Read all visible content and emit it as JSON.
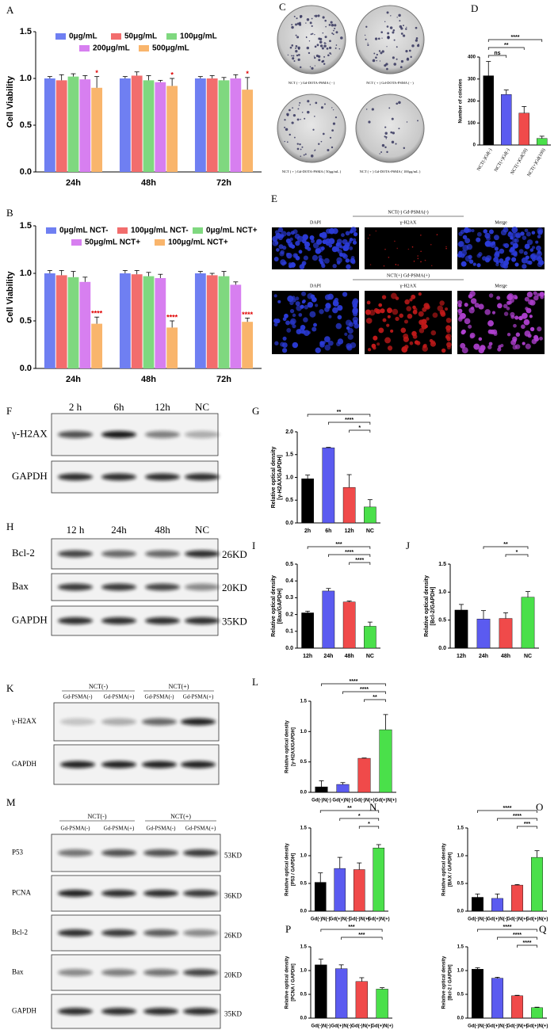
{
  "panel_labels": [
    "A",
    "B",
    "C",
    "D",
    "E",
    "F",
    "G",
    "H",
    "I",
    "J",
    "K",
    "L",
    "M",
    "N",
    "O",
    "P",
    "Q"
  ],
  "colony": {
    "captions": [
      "NCT ( - )  Gd-DOTA-PSMA ( - )",
      "NCT ( + )  Gd-DOTA-PSMA ( - )",
      "NCT ( + )  Gd-DOTA-PSMA ( 50μg/mL )",
      "NCT ( + )  Gd-DOTA-PSMA ( 100μg/mL )"
    ]
  },
  "immuno": {
    "groups": [
      "NCT(-) Gd-PSMA(-)",
      "NCT(+) Gd-PSMA(+)"
    ],
    "channels": [
      "DAPI",
      "γ-H2AX",
      "Merge"
    ]
  },
  "blots": [
    {
      "lanes": [
        "2 h",
        "6h",
        "12h",
        "NC"
      ],
      "rows": [
        {
          "label": "γ-H2AX"
        },
        {
          "label": "GAPDH"
        }
      ]
    },
    {
      "lanes": [
        "12 h",
        "24h",
        "48h",
        "NC"
      ],
      "rows": [
        {
          "label": "Bcl-2",
          "kd": "26KD"
        },
        {
          "label": "Bax",
          "kd": "20KD"
        },
        {
          "label": "GAPDH",
          "kd": "35KD"
        }
      ]
    },
    {
      "groups": [
        "NCT(-)",
        "NCT(+)"
      ],
      "lanes": [
        "Gd-PSMA(-)",
        "Gd-PSMA(+)",
        "Gd-PSMA(-)",
        "Gd-PSMA(+)"
      ],
      "rows": [
        {
          "label": "γ-H2AX"
        },
        {
          "label": "GAPDH"
        }
      ]
    },
    {
      "groups": [
        "NCT(-)",
        "NCT(+)"
      ],
      "lanes": [
        "Gd-PSMA(-)",
        "Gd-PSMA(+)",
        "Gd-PSMA(-)",
        "Gd-PSMA(+)"
      ],
      "rows": [
        {
          "label": "P53",
          "kd": "53KD"
        },
        {
          "label": "PCNA",
          "kd": "36KD"
        },
        {
          "label": "Bcl-2",
          "kd": "26KD"
        },
        {
          "label": "Bax",
          "kd": "20KD"
        },
        {
          "label": "GAPDH",
          "kd": "35KD"
        }
      ]
    }
  ],
  "chart_data": [
    {
      "type": "bar",
      "ylabel": "Cell Viability",
      "categories": [
        "24h",
        "48h",
        "72h"
      ],
      "ylim": [
        0,
        1.5
      ],
      "yticks": [
        {
          "value": 0,
          "label": "0.0"
        },
        0.5,
        {
          "value": 1,
          "label": "1.0"
        },
        1.5
      ],
      "series": [
        {
          "name": "0μg/mL",
          "color": "#6f7ff2",
          "values": [
            1.0,
            1.0,
            1.0
          ],
          "errors": [
            0.02,
            0.02,
            0.02
          ]
        },
        {
          "name": "50μg/mL",
          "color": "#f26d6d",
          "values": [
            0.98,
            1.03,
            1.0
          ],
          "errors": [
            0.06,
            0.04,
            0.03
          ]
        },
        {
          "name": "100μg/mL",
          "color": "#7fd87f",
          "values": [
            1.02,
            0.98,
            0.98
          ],
          "errors": [
            0.03,
            0.05,
            0.03
          ]
        },
        {
          "name": "200μg/mL",
          "color": "#d77ff0",
          "values": [
            0.99,
            0.96,
            1.0
          ],
          "errors": [
            0.04,
            0.02,
            0.04
          ]
        },
        {
          "name": "500μg/mL",
          "color": "#f9b56c",
          "values": [
            0.9,
            0.92,
            0.88
          ],
          "errors": [
            0.12,
            0.08,
            0.13
          ],
          "annotations": [
            "*",
            "*",
            "*"
          ]
        }
      ]
    },
    {
      "type": "bar",
      "ylabel": "Cell Viability",
      "categories": [
        "24h",
        "48h",
        "72h"
      ],
      "ylim": [
        0,
        1.5
      ],
      "yticks": [
        {
          "value": 0,
          "label": "0.0"
        },
        0.5,
        {
          "value": 1,
          "label": "1.0"
        },
        1.5
      ],
      "series": [
        {
          "name": "0μg/mL NCT-",
          "color": "#6f7ff2",
          "values": [
            1.0,
            1.0,
            1.0
          ],
          "errors": [
            0.03,
            0.03,
            0.02
          ]
        },
        {
          "name": "100μg/mL NCT-",
          "color": "#f26d6d",
          "values": [
            0.98,
            0.99,
            0.98
          ],
          "errors": [
            0.05,
            0.04,
            0.02
          ]
        },
        {
          "name": "0μg/mL NCT+",
          "color": "#7fd87f",
          "values": [
            0.96,
            0.97,
            0.97
          ],
          "errors": [
            0.06,
            0.04,
            0.05
          ]
        },
        {
          "name": "50μg/mL NCT+",
          "color": "#d77ff0",
          "values": [
            0.91,
            0.95,
            0.88
          ],
          "errors": [
            0.05,
            0.04,
            0.03
          ]
        },
        {
          "name": "100μg/mL NCT+",
          "color": "#f9b56c",
          "values": [
            0.47,
            0.43,
            0.49
          ],
          "errors": [
            0.07,
            0.07,
            0.04
          ],
          "annotations": [
            "****",
            "****",
            "****"
          ]
        }
      ]
    },
    {
      "type": "bar",
      "ylabel": "Number of colonies",
      "categories": [
        "NCT(-)Gd(-)",
        "NCT(+)Gd(-)",
        "NCT(+)Gd(50)",
        "NCT(+)Gd(100)"
      ],
      "values": [
        315,
        230,
        145,
        30
      ],
      "errors": [
        65,
        20,
        30,
        10
      ],
      "colors": [
        "#000000",
        "#5b5bf0",
        "#f04a4a",
        "#4ae04a"
      ],
      "ylim": [
        0,
        400
      ],
      "yticks": [
        0,
        100,
        200,
        300,
        400
      ],
      "significance": [
        "****",
        "**",
        "ns"
      ]
    },
    {
      "type": "bar",
      "ylabel": "Relative optical density",
      "ylabel_sub": "[γ-H2AX/GAPDH]",
      "categories": [
        "2h",
        "6h",
        "12h",
        "NC"
      ],
      "values": [
        0.97,
        1.65,
        0.78,
        0.35
      ],
      "errors": [
        0.08,
        0.01,
        0.28,
        0.16
      ],
      "colors": [
        "#000000",
        "#5b5bf0",
        "#f04a4a",
        "#4ae04a"
      ],
      "ylim": [
        0,
        2
      ],
      "yticks": [
        {
          "value": 0,
          "label": "0.0"
        },
        0.5,
        {
          "value": 1,
          "label": "1.0"
        },
        1.5,
        {
          "value": 2,
          "label": "2.0"
        }
      ],
      "significance": [
        "**",
        "****",
        "*"
      ]
    },
    {
      "type": "bar",
      "ylabel": "Relative optical density",
      "ylabel_sub": "[Bax/GAPDH]",
      "categories": [
        "12h",
        "24h",
        "48h",
        "NC"
      ],
      "values": [
        0.21,
        0.34,
        0.275,
        0.13
      ],
      "errors": [
        0.01,
        0.015,
        0.005,
        0.025
      ],
      "colors": [
        "#000000",
        "#5b5bf0",
        "#f04a4a",
        "#4ae04a"
      ],
      "ylim": [
        0,
        0.5
      ],
      "yticks": [
        {
          "value": 0,
          "label": "0.0"
        },
        0.1,
        0.2,
        0.3,
        0.4,
        0.5
      ],
      "significance": [
        "***",
        "****",
        "****"
      ]
    },
    {
      "type": "bar",
      "ylabel": "Relative optical density",
      "ylabel_sub": "[Bcl-2/GAPDH]",
      "categories": [
        "12h",
        "24h",
        "48h",
        "NC"
      ],
      "values": [
        0.68,
        0.52,
        0.53,
        0.91
      ],
      "errors": [
        0.1,
        0.15,
        0.1,
        0.1
      ],
      "colors": [
        "#000000",
        "#5b5bf0",
        "#f04a4a",
        "#4ae04a"
      ],
      "ylim": [
        0,
        1.5
      ],
      "yticks": [
        {
          "value": 0,
          "label": "0.0"
        },
        0.5,
        {
          "value": 1,
          "label": "1.0"
        },
        1.5
      ],
      "significance": [
        "**",
        "*"
      ]
    },
    {
      "type": "bar",
      "ylabel": "Relative optical density",
      "ylabel_sub": "[γ-H2AX/GAPDH]",
      "categories": [
        "Gd(-)N(-)",
        "Gd(+)N(-)",
        "Gd(-)N(+)",
        "Gd(+)N(+)"
      ],
      "values": [
        0.09,
        0.13,
        0.56,
        1.03
      ],
      "errors": [
        0.1,
        0.03,
        0.005,
        0.25
      ],
      "colors": [
        "#000000",
        "#5b5bf0",
        "#f04a4a",
        "#4ae04a"
      ],
      "ylim": [
        0,
        1.5
      ],
      "yticks": [
        {
          "value": 0,
          "label": "0.0"
        },
        0.5,
        {
          "value": 1,
          "label": "1.0"
        },
        1.5
      ],
      "significance": [
        "****",
        "****",
        "**"
      ]
    },
    {
      "type": "bar",
      "ylabel": "Relative optical density",
      "ylabel_sub": "[P53 / GAPDH]",
      "categories": [
        "Gd(-)N(-)",
        "Gd(+)N(-)",
        "Gd(-)N(+)",
        "Gd(+)N(+)"
      ],
      "values": [
        0.52,
        0.77,
        0.75,
        1.14
      ],
      "errors": [
        0.17,
        0.2,
        0.12,
        0.06
      ],
      "colors": [
        "#000000",
        "#5b5bf0",
        "#f04a4a",
        "#4ae04a"
      ],
      "ylim": [
        0,
        1.5
      ],
      "yticks": [
        {
          "value": 0,
          "label": "0.0"
        },
        0.5,
        {
          "value": 1,
          "label": "1.0"
        },
        1.5
      ],
      "significance": [
        "**",
        "*",
        "*"
      ]
    },
    {
      "type": "bar",
      "ylabel": "Relative optical density",
      "ylabel_sub": "[BAX / GAPDH]",
      "categories": [
        "Gd(-)N(-)",
        "Gd(+)N(-)",
        "Gd(-)N(+)",
        "Gd(+)N(+)"
      ],
      "values": [
        0.25,
        0.23,
        0.47,
        0.97
      ],
      "errors": [
        0.06,
        0.08,
        0.01,
        0.12
      ],
      "colors": [
        "#000000",
        "#5b5bf0",
        "#f04a4a",
        "#4ae04a"
      ],
      "ylim": [
        0,
        1.5
      ],
      "yticks": [
        {
          "value": 0,
          "label": "0.0"
        },
        0.5,
        {
          "value": 1,
          "label": "1.0"
        },
        1.5
      ],
      "significance": [
        "****",
        "****",
        "***"
      ]
    },
    {
      "type": "bar",
      "ylabel": "Relative optical density",
      "ylabel_sub": "[PCNA / GAPDH]",
      "categories": [
        "Gd(-)N(-)",
        "Gd(+)N(-)",
        "Gd(-)N(+)",
        "Gd(+)N(+)"
      ],
      "values": [
        1.12,
        1.04,
        0.77,
        0.61
      ],
      "errors": [
        0.12,
        0.08,
        0.08,
        0.03
      ],
      "colors": [
        "#000000",
        "#5b5bf0",
        "#f04a4a",
        "#4ae04a"
      ],
      "ylim": [
        0,
        1.5
      ],
      "yticks": [
        {
          "value": 0,
          "label": "0.0"
        },
        0.5,
        {
          "value": 1,
          "label": "1.0"
        },
        1.5
      ],
      "significance": [
        "***",
        "***"
      ]
    },
    {
      "type": "bar",
      "ylabel": "Relative optical density",
      "ylabel_sub": "[Bcl-2 / GAPDH]",
      "categories": [
        "Gd(-)N(-)",
        "Gd(+)N(-)",
        "Gd(-)N(+)",
        "Gd(+)N(+)"
      ],
      "values": [
        1.03,
        0.84,
        0.47,
        0.22
      ],
      "errors": [
        0.03,
        0.02,
        0.01,
        0.01
      ],
      "colors": [
        "#000000",
        "#5b5bf0",
        "#f04a4a",
        "#4ae04a"
      ],
      "ylim": [
        0,
        1.5
      ],
      "yticks": [
        {
          "value": 0,
          "label": "0.0"
        },
        0.5,
        {
          "value": 1,
          "label": "1.0"
        },
        1.5
      ],
      "significance": [
        "****",
        "****",
        "****"
      ]
    }
  ]
}
